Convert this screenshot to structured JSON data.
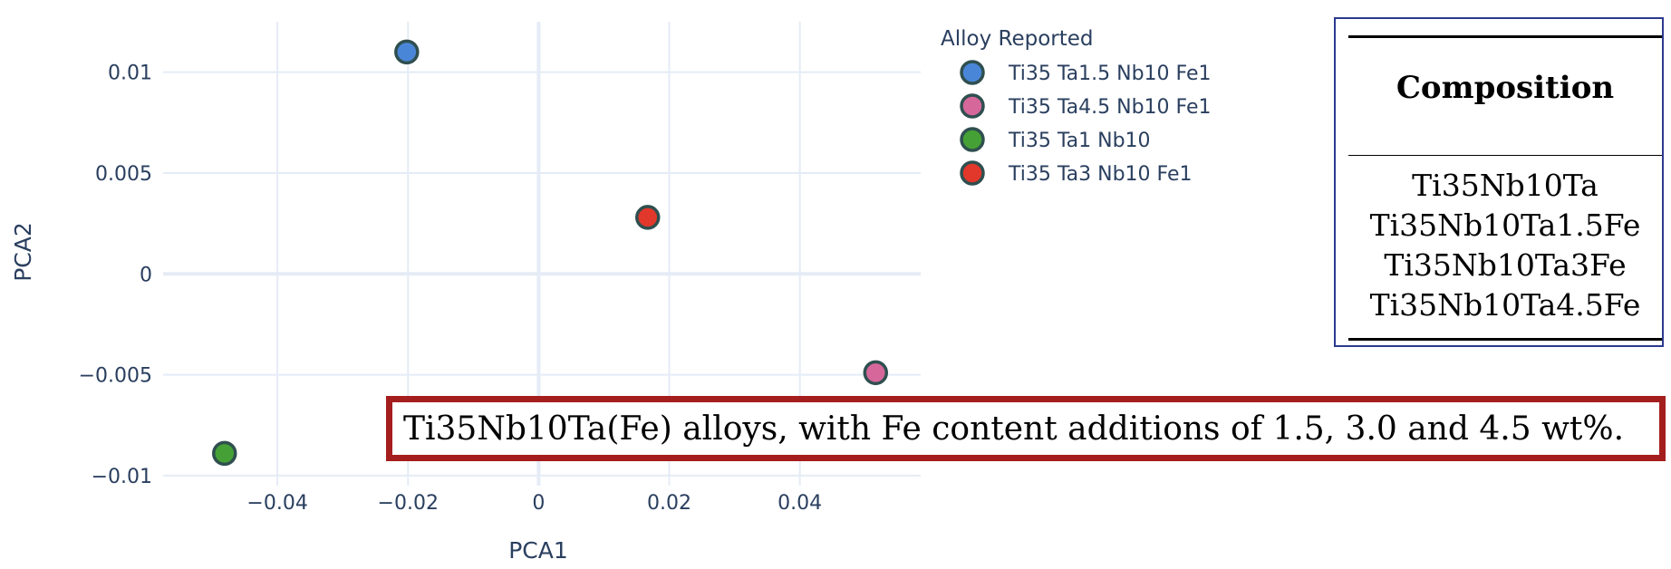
{
  "chart_data": {
    "type": "scatter",
    "xlabel": "PCA1",
    "ylabel": "PCA2",
    "xlim": [
      -0.0575,
      0.0585
    ],
    "ylim": [
      -0.0105,
      0.0125
    ],
    "x_ticks": [
      -0.04,
      -0.02,
      0,
      0.02,
      0.04
    ],
    "x_tick_labels": [
      "−0.04",
      "−0.02",
      "0",
      "0.02",
      "0.04"
    ],
    "y_ticks": [
      -0.01,
      -0.005,
      0,
      0.005,
      0.01
    ],
    "y_tick_labels": [
      "−0.01",
      "−0.005",
      "0",
      "0.005",
      "0.01"
    ],
    "grid": true,
    "legend_title": "Alloy Reported",
    "legend_position": "top-right",
    "series": [
      {
        "name": "Ti35 Ta1.5 Nb10 Fe1",
        "color": "#4a86d8",
        "x": [
          -0.0202
        ],
        "y": [
          0.011
        ]
      },
      {
        "name": "Ti35 Ta4.5 Nb10 Fe1",
        "color": "#d6679b",
        "x": [
          0.0516
        ],
        "y": [
          -0.0049
        ]
      },
      {
        "name": "Ti35 Ta1 Nb10",
        "color": "#45a135",
        "x": [
          -0.0481
        ],
        "y": [
          -0.0089
        ]
      },
      {
        "name": "Ti35 Ta3 Nb10 Fe1",
        "color": "#e2372b",
        "x": [
          0.0167
        ],
        "y": [
          0.0028
        ]
      }
    ]
  },
  "composition_table": {
    "header": "Composition",
    "rows": [
      "Ti35Nb10Ta",
      "Ti35Nb10Ta1.5Fe",
      "Ti35Nb10Ta3Fe",
      "Ti35Nb10Ta4.5Fe"
    ]
  },
  "caption": {
    "text": "Ti35Nb10Ta(Fe) alloys, with Fe content additions of 1.5, 3.0 and 4.5 wt%."
  }
}
